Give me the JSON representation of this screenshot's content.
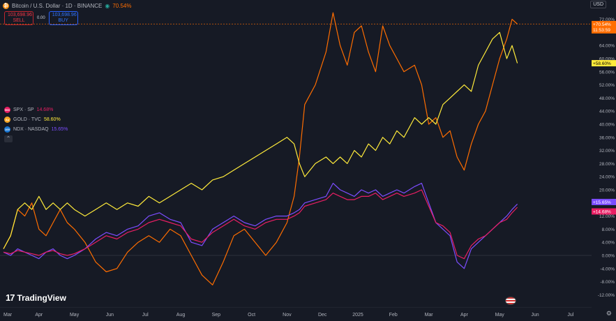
{
  "header": {
    "symbol_title": "Bitcoin / U.S. Dollar · 1D · BINANCE",
    "change_pct": "70.54%",
    "sell_price": "103,698.96",
    "sell_label": "SELL",
    "spread": "0.00",
    "buy_price": "103,698.96",
    "buy_label": "BUY",
    "currency_button": "USD"
  },
  "legend": [
    {
      "symbol": "SPX · SP",
      "value": "14.68%",
      "color": "#e91e63",
      "icon_text": "500"
    },
    {
      "symbol": "GOLD · TVC",
      "value": "58.60%",
      "color": "#ffeb3b",
      "icon_text": "Au"
    },
    {
      "symbol": "NDX · NASDAQ",
      "value": "15.65%",
      "color": "#7b1fa2",
      "icon_text": "100"
    }
  ],
  "branding": {
    "logo_mark": "17",
    "logo_text": "TradingView"
  },
  "chart_data": {
    "type": "line",
    "y_unit": "%",
    "ylim": [
      -12,
      76
    ],
    "y_ticks": [
      "72.00%",
      "64.00%",
      "60.00%",
      "56.00%",
      "52.00%",
      "48.00%",
      "44.00%",
      "40.00%",
      "36.00%",
      "32.00%",
      "28.00%",
      "24.00%",
      "20.00%",
      "16.00%",
      "12.00%",
      "8.00%",
      "4.00%",
      "0.00%",
      "-4.00%",
      "-8.00%",
      "-12.00%"
    ],
    "x_ticks": [
      "Mar",
      "Apr",
      "May",
      "Jun",
      "Jul",
      "Aug",
      "Sep",
      "Oct",
      "Nov",
      "Dec",
      "2025",
      "Feb",
      "Mar",
      "Apr",
      "May",
      "Jun",
      "Jul"
    ],
    "grid": false,
    "last_value_labels": [
      {
        "series": "BTC",
        "text": "+70.54%",
        "sub": "11:53:59",
        "value": 70.54,
        "color": "#ff6d00",
        "text_color": "#ffffff"
      },
      {
        "series": "GOLD",
        "text": "+58.60%",
        "value": 58.6,
        "color": "#ffeb3b",
        "text_color": "#000000"
      },
      {
        "series": "NDX",
        "text": "+15.65%",
        "value": 15.65,
        "color": "#7c4dff",
        "text_color": "#ffffff"
      },
      {
        "series": "SPX",
        "text": "+14.68%",
        "value": 14.68,
        "color": "#e91e63",
        "text_color": "#ffffff"
      }
    ],
    "series": [
      {
        "color": "#ff6d00",
        "points": [
          [
            0,
            2
          ],
          [
            0.2,
            6
          ],
          [
            0.4,
            14
          ],
          [
            0.6,
            12
          ],
          [
            0.8,
            16
          ],
          [
            1.0,
            8
          ],
          [
            1.2,
            6
          ],
          [
            1.4,
            10
          ],
          [
            1.6,
            14
          ],
          [
            1.8,
            10
          ],
          [
            2.0,
            8
          ],
          [
            2.3,
            4
          ],
          [
            2.6,
            -2
          ],
          [
            2.9,
            -5
          ],
          [
            3.2,
            -4
          ],
          [
            3.5,
            1
          ],
          [
            3.8,
            4
          ],
          [
            4.1,
            6
          ],
          [
            4.4,
            4
          ],
          [
            4.7,
            8
          ],
          [
            5.0,
            6
          ],
          [
            5.3,
            0
          ],
          [
            5.6,
            -6
          ],
          [
            5.9,
            -9
          ],
          [
            6.2,
            -2
          ],
          [
            6.5,
            6
          ],
          [
            6.8,
            8
          ],
          [
            7.1,
            4
          ],
          [
            7.4,
            0
          ],
          [
            7.7,
            4
          ],
          [
            8.0,
            10
          ],
          [
            8.2,
            18
          ],
          [
            8.35,
            30
          ],
          [
            8.5,
            46
          ],
          [
            8.8,
            52
          ],
          [
            9.1,
            62
          ],
          [
            9.3,
            74
          ],
          [
            9.5,
            64
          ],
          [
            9.7,
            58
          ],
          [
            9.9,
            68
          ],
          [
            10.1,
            70
          ],
          [
            10.3,
            62
          ],
          [
            10.5,
            56
          ],
          [
            10.7,
            70
          ],
          [
            10.9,
            64
          ],
          [
            11.1,
            60
          ],
          [
            11.3,
            56
          ],
          [
            11.6,
            58
          ],
          [
            11.8,
            52
          ],
          [
            12.0,
            40
          ],
          [
            12.2,
            42
          ],
          [
            12.4,
            36
          ],
          [
            12.6,
            38
          ],
          [
            12.8,
            30
          ],
          [
            13.0,
            26
          ],
          [
            13.2,
            34
          ],
          [
            13.4,
            40
          ],
          [
            13.6,
            44
          ],
          [
            13.8,
            52
          ],
          [
            14.0,
            60
          ],
          [
            14.2,
            66
          ],
          [
            14.35,
            72
          ],
          [
            14.5,
            70.54
          ]
        ]
      },
      {
        "color": "#ffeb3b",
        "points": [
          [
            0,
            2
          ],
          [
            0.2,
            6
          ],
          [
            0.4,
            14
          ],
          [
            0.6,
            16
          ],
          [
            0.8,
            14
          ],
          [
            1.0,
            18
          ],
          [
            1.2,
            14
          ],
          [
            1.4,
            16
          ],
          [
            1.6,
            14
          ],
          [
            1.8,
            16
          ],
          [
            2.0,
            14
          ],
          [
            2.3,
            12
          ],
          [
            2.6,
            14
          ],
          [
            2.9,
            16
          ],
          [
            3.2,
            14
          ],
          [
            3.5,
            16
          ],
          [
            3.8,
            15
          ],
          [
            4.1,
            18
          ],
          [
            4.4,
            16
          ],
          [
            4.7,
            18
          ],
          [
            5.0,
            20
          ],
          [
            5.3,
            22
          ],
          [
            5.6,
            20
          ],
          [
            5.9,
            23
          ],
          [
            6.2,
            24
          ],
          [
            6.5,
            26
          ],
          [
            6.8,
            28
          ],
          [
            7.1,
            30
          ],
          [
            7.4,
            32
          ],
          [
            7.7,
            34
          ],
          [
            8.0,
            36
          ],
          [
            8.2,
            34
          ],
          [
            8.35,
            28
          ],
          [
            8.5,
            24
          ],
          [
            8.8,
            28
          ],
          [
            9.1,
            30
          ],
          [
            9.3,
            28
          ],
          [
            9.5,
            30
          ],
          [
            9.7,
            28
          ],
          [
            9.9,
            32
          ],
          [
            10.1,
            30
          ],
          [
            10.3,
            34
          ],
          [
            10.5,
            32
          ],
          [
            10.7,
            36
          ],
          [
            10.9,
            34
          ],
          [
            11.1,
            38
          ],
          [
            11.3,
            36
          ],
          [
            11.6,
            42
          ],
          [
            11.8,
            40
          ],
          [
            12.0,
            42
          ],
          [
            12.2,
            40
          ],
          [
            12.4,
            46
          ],
          [
            12.6,
            48
          ],
          [
            12.8,
            50
          ],
          [
            13.0,
            52
          ],
          [
            13.2,
            50
          ],
          [
            13.4,
            58
          ],
          [
            13.6,
            62
          ],
          [
            13.8,
            66
          ],
          [
            14.0,
            68
          ],
          [
            14.2,
            60
          ],
          [
            14.35,
            64
          ],
          [
            14.5,
            58.6
          ]
        ]
      },
      {
        "color": "#7c4dff",
        "points": [
          [
            0,
            1
          ],
          [
            0.2,
            0
          ],
          [
            0.4,
            2
          ],
          [
            0.6,
            1
          ],
          [
            0.8,
            0
          ],
          [
            1.0,
            -1
          ],
          [
            1.2,
            1
          ],
          [
            1.4,
            2
          ],
          [
            1.6,
            0
          ],
          [
            1.8,
            -1
          ],
          [
            2.0,
            0
          ],
          [
            2.3,
            2
          ],
          [
            2.6,
            5
          ],
          [
            2.9,
            7
          ],
          [
            3.2,
            6
          ],
          [
            3.5,
            8
          ],
          [
            3.8,
            9
          ],
          [
            4.1,
            12
          ],
          [
            4.4,
            13
          ],
          [
            4.7,
            11
          ],
          [
            5.0,
            10
          ],
          [
            5.3,
            4
          ],
          [
            5.6,
            3
          ],
          [
            5.9,
            8
          ],
          [
            6.2,
            10
          ],
          [
            6.5,
            12
          ],
          [
            6.8,
            10
          ],
          [
            7.1,
            9
          ],
          [
            7.4,
            11
          ],
          [
            7.7,
            12
          ],
          [
            8.0,
            12
          ],
          [
            8.2,
            13
          ],
          [
            8.35,
            14
          ],
          [
            8.5,
            16
          ],
          [
            8.8,
            17
          ],
          [
            9.1,
            18
          ],
          [
            9.3,
            22
          ],
          [
            9.5,
            20
          ],
          [
            9.7,
            19
          ],
          [
            9.9,
            18
          ],
          [
            10.1,
            20
          ],
          [
            10.3,
            19
          ],
          [
            10.5,
            20
          ],
          [
            10.7,
            18
          ],
          [
            10.9,
            19
          ],
          [
            11.1,
            20
          ],
          [
            11.3,
            19
          ],
          [
            11.6,
            21
          ],
          [
            11.8,
            22
          ],
          [
            12.0,
            16
          ],
          [
            12.2,
            10
          ],
          [
            12.4,
            8
          ],
          [
            12.6,
            6
          ],
          [
            12.8,
            -2
          ],
          [
            13.0,
            -4
          ],
          [
            13.2,
            2
          ],
          [
            13.4,
            4
          ],
          [
            13.6,
            6
          ],
          [
            13.8,
            8
          ],
          [
            14.0,
            10
          ],
          [
            14.2,
            12
          ],
          [
            14.35,
            14
          ],
          [
            14.5,
            15.65
          ]
        ]
      },
      {
        "color": "#e91e63",
        "points": [
          [
            0,
            1
          ],
          [
            0.2,
            0.5
          ],
          [
            0.4,
            1.5
          ],
          [
            0.6,
            1
          ],
          [
            0.8,
            0.5
          ],
          [
            1.0,
            0
          ],
          [
            1.2,
            1
          ],
          [
            1.4,
            1.5
          ],
          [
            1.6,
            0.5
          ],
          [
            1.8,
            0
          ],
          [
            2.0,
            0.5
          ],
          [
            2.3,
            2
          ],
          [
            2.6,
            4
          ],
          [
            2.9,
            6
          ],
          [
            3.2,
            5
          ],
          [
            3.5,
            7
          ],
          [
            3.8,
            8
          ],
          [
            4.1,
            10
          ],
          [
            4.4,
            11
          ],
          [
            4.7,
            10
          ],
          [
            5.0,
            9
          ],
          [
            5.3,
            5
          ],
          [
            5.6,
            4
          ],
          [
            5.9,
            7
          ],
          [
            6.2,
            9
          ],
          [
            6.5,
            11
          ],
          [
            6.8,
            9
          ],
          [
            7.1,
            8
          ],
          [
            7.4,
            10
          ],
          [
            7.7,
            11
          ],
          [
            8.0,
            11
          ],
          [
            8.2,
            12
          ],
          [
            8.35,
            13
          ],
          [
            8.5,
            15
          ],
          [
            8.8,
            16
          ],
          [
            9.1,
            17
          ],
          [
            9.3,
            19
          ],
          [
            9.5,
            18
          ],
          [
            9.7,
            17
          ],
          [
            9.9,
            17
          ],
          [
            10.1,
            18
          ],
          [
            10.3,
            18
          ],
          [
            10.5,
            19
          ],
          [
            10.7,
            17
          ],
          [
            10.9,
            18
          ],
          [
            11.1,
            19
          ],
          [
            11.3,
            18
          ],
          [
            11.6,
            19
          ],
          [
            11.8,
            20
          ],
          [
            12.0,
            15
          ],
          [
            12.2,
            10
          ],
          [
            12.4,
            9
          ],
          [
            12.6,
            7
          ],
          [
            12.8,
            0
          ],
          [
            13.0,
            -1
          ],
          [
            13.2,
            3
          ],
          [
            13.4,
            5
          ],
          [
            13.6,
            6
          ],
          [
            13.8,
            8
          ],
          [
            14.0,
            10
          ],
          [
            14.2,
            11
          ],
          [
            14.35,
            13
          ],
          [
            14.5,
            14.68
          ]
        ]
      }
    ]
  }
}
